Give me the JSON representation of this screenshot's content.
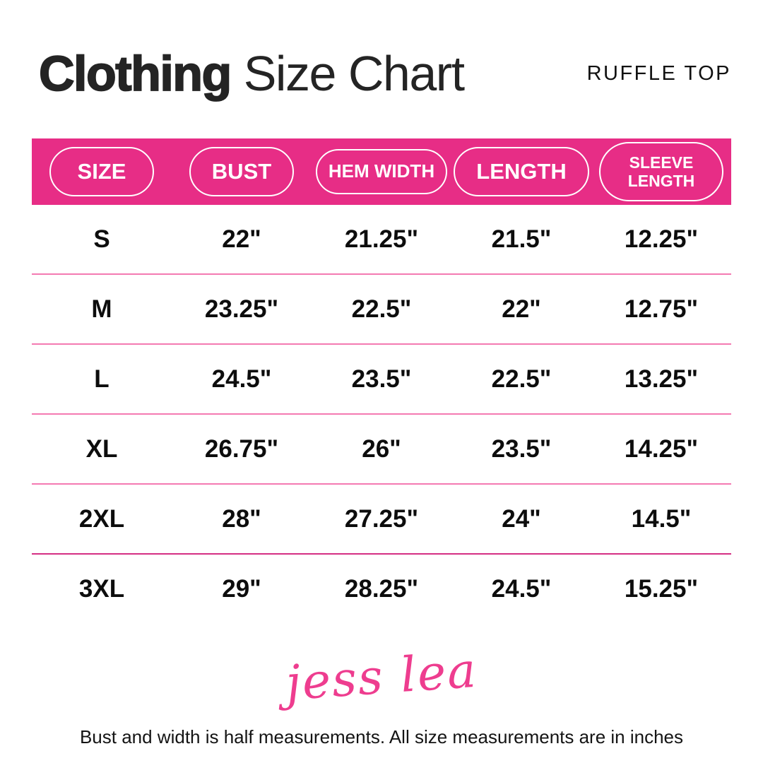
{
  "header": {
    "title_bold": "Clothing",
    "title_regular": " Size Chart",
    "product_label": "RUFFLE TOP"
  },
  "table": {
    "columns": [
      {
        "label": "SIZE",
        "lines": [
          "SIZE"
        ]
      },
      {
        "label": "BUST",
        "lines": [
          "BUST"
        ]
      },
      {
        "label": "HEM WIDTH",
        "lines": [
          "HEM WIDTH"
        ]
      },
      {
        "label": "LENGTH",
        "lines": [
          "LENGTH"
        ]
      },
      {
        "label": "SLEEVE LENGTH",
        "lines": [
          "SLEEVE",
          "LENGTH"
        ]
      }
    ],
    "rows": [
      {
        "size": "S",
        "values": [
          "22\"",
          "21.25\"",
          "21.5\"",
          "12.25\""
        ]
      },
      {
        "size": "M",
        "values": [
          "23.25\"",
          "22.5\"",
          "22\"",
          "12.75\""
        ]
      },
      {
        "size": "L",
        "values": [
          "24.5\"",
          "23.5\"",
          "22.5\"",
          "13.25\""
        ]
      },
      {
        "size": "XL",
        "values": [
          "26.75\"",
          "26\"",
          "23.5\"",
          "14.25\""
        ]
      },
      {
        "size": "2XL",
        "values": [
          "28\"",
          "27.25\"",
          "24\"",
          "14.5\""
        ]
      },
      {
        "size": "3XL",
        "values": [
          "29\"",
          "28.25\"",
          "24.5\"",
          "15.25\""
        ]
      }
    ]
  },
  "logo": {
    "text": "jess lea"
  },
  "footer": {
    "note": "Bust and width is half measurements. All size measurements are in inches"
  },
  "colors": {
    "header_pink": "#e72d86",
    "divider_pink": "#f47ab2",
    "divider_dark": "#d52f84",
    "logo_pink": "#ee3d8f"
  },
  "chart_data": {
    "type": "table",
    "title": "Clothing Size Chart",
    "subtitle": "RUFFLE TOP",
    "columns": [
      "SIZE",
      "BUST",
      "HEM WIDTH",
      "LENGTH",
      "SLEEVE LENGTH"
    ],
    "rows": [
      [
        "S",
        "22\"",
        "21.25\"",
        "21.5\"",
        "12.25\""
      ],
      [
        "M",
        "23.25\"",
        "22.5\"",
        "22\"",
        "12.75\""
      ],
      [
        "L",
        "24.5\"",
        "23.5\"",
        "22.5\"",
        "13.25\""
      ],
      [
        "XL",
        "26.75\"",
        "26\"",
        "23.5\"",
        "14.25\""
      ],
      [
        "2XL",
        "28\"",
        "27.25\"",
        "24\"",
        "14.5\""
      ],
      [
        "3XL",
        "29\"",
        "28.25\"",
        "24.5\"",
        "15.25\""
      ]
    ],
    "units": "inches",
    "footnote": "Bust and width is half measurements. All size measurements are in inches",
    "layout_hints": {
      "header_style": "pink band with white outlined pills",
      "row_dividers": "thin pink horizontal rules"
    }
  }
}
